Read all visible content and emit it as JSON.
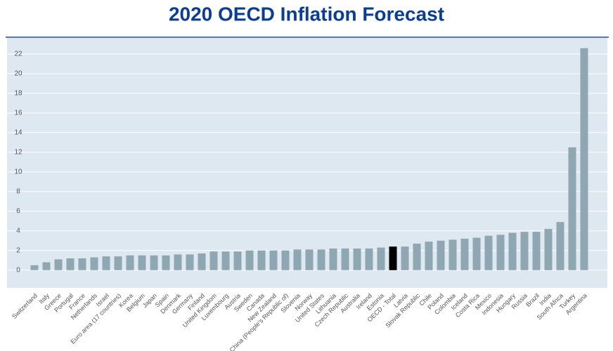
{
  "chart_data": {
    "type": "bar",
    "title": "2020 OECD Inflation Forecast",
    "categories": [
      "Switzerland",
      "Italy",
      "Greece",
      "Portugal",
      "France",
      "Netherlands",
      "Israel",
      "Euro area (17 countries)",
      "Korea",
      "Belgium",
      "Japan",
      "Spain",
      "Denmark",
      "Germany",
      "Finland",
      "United Kingdom",
      "Luxembourg",
      "Austria",
      "Sweden",
      "Canada",
      "New Zealand",
      "China (People's Republic of)",
      "Slovenia",
      "Norway",
      "United States",
      "Lithuania",
      "Czech Republic",
      "Australia",
      "Ireland",
      "Estonia",
      "OECD - Total",
      "Latvia",
      "Slovak Republic",
      "Chile",
      "Poland",
      "Colombia",
      "Iceland",
      "Costa Rica",
      "Mexico",
      "Indonesia",
      "Hungary",
      "Russia",
      "Brazil",
      "India",
      "South Africa",
      "Turkey",
      "Argentina"
    ],
    "values": [
      0.5,
      0.8,
      1.1,
      1.2,
      1.2,
      1.3,
      1.4,
      1.4,
      1.5,
      1.5,
      1.5,
      1.5,
      1.6,
      1.6,
      1.7,
      1.9,
      1.9,
      1.9,
      2.0,
      2.0,
      2.0,
      2.0,
      2.1,
      2.1,
      2.1,
      2.2,
      2.2,
      2.2,
      2.2,
      2.3,
      2.4,
      2.4,
      2.7,
      2.9,
      3.0,
      3.1,
      3.2,
      3.3,
      3.5,
      3.6,
      3.8,
      3.9,
      3.9,
      4.2,
      4.9,
      12.5,
      22.6
    ],
    "colors": [
      "#8fa6b3",
      "#8fa6b3",
      "#8fa6b3",
      "#8fa6b3",
      "#8fa6b3",
      "#8fa6b3",
      "#8fa6b3",
      "#8fa6b3",
      "#8fa6b3",
      "#8fa6b3",
      "#8fa6b3",
      "#8fa6b3",
      "#8fa6b3",
      "#8fa6b3",
      "#8fa6b3",
      "#8fa6b3",
      "#8fa6b3",
      "#8fa6b3",
      "#8fa6b3",
      "#8fa6b3",
      "#8fa6b3",
      "#8fa6b3",
      "#8fa6b3",
      "#8fa6b3",
      "#8fa6b3",
      "#8fa6b3",
      "#8fa6b3",
      "#8fa6b3",
      "#8fa6b3",
      "#8fa6b3",
      "#000000",
      "#8fa6b3",
      "#8fa6b3",
      "#8fa6b3",
      "#8fa6b3",
      "#8fa6b3",
      "#8fa6b3",
      "#8fa6b3",
      "#8fa6b3",
      "#8fa6b3",
      "#8fa6b3",
      "#8fa6b3",
      "#8fa6b3",
      "#8fa6b3",
      "#8fa6b3",
      "#8fa6b3",
      "#8fa6b3"
    ],
    "ylim": [
      -1.8,
      23
    ],
    "yticks": [
      0,
      2,
      4,
      6,
      8,
      10,
      12,
      14,
      16,
      18,
      20,
      22
    ],
    "grid": true
  }
}
